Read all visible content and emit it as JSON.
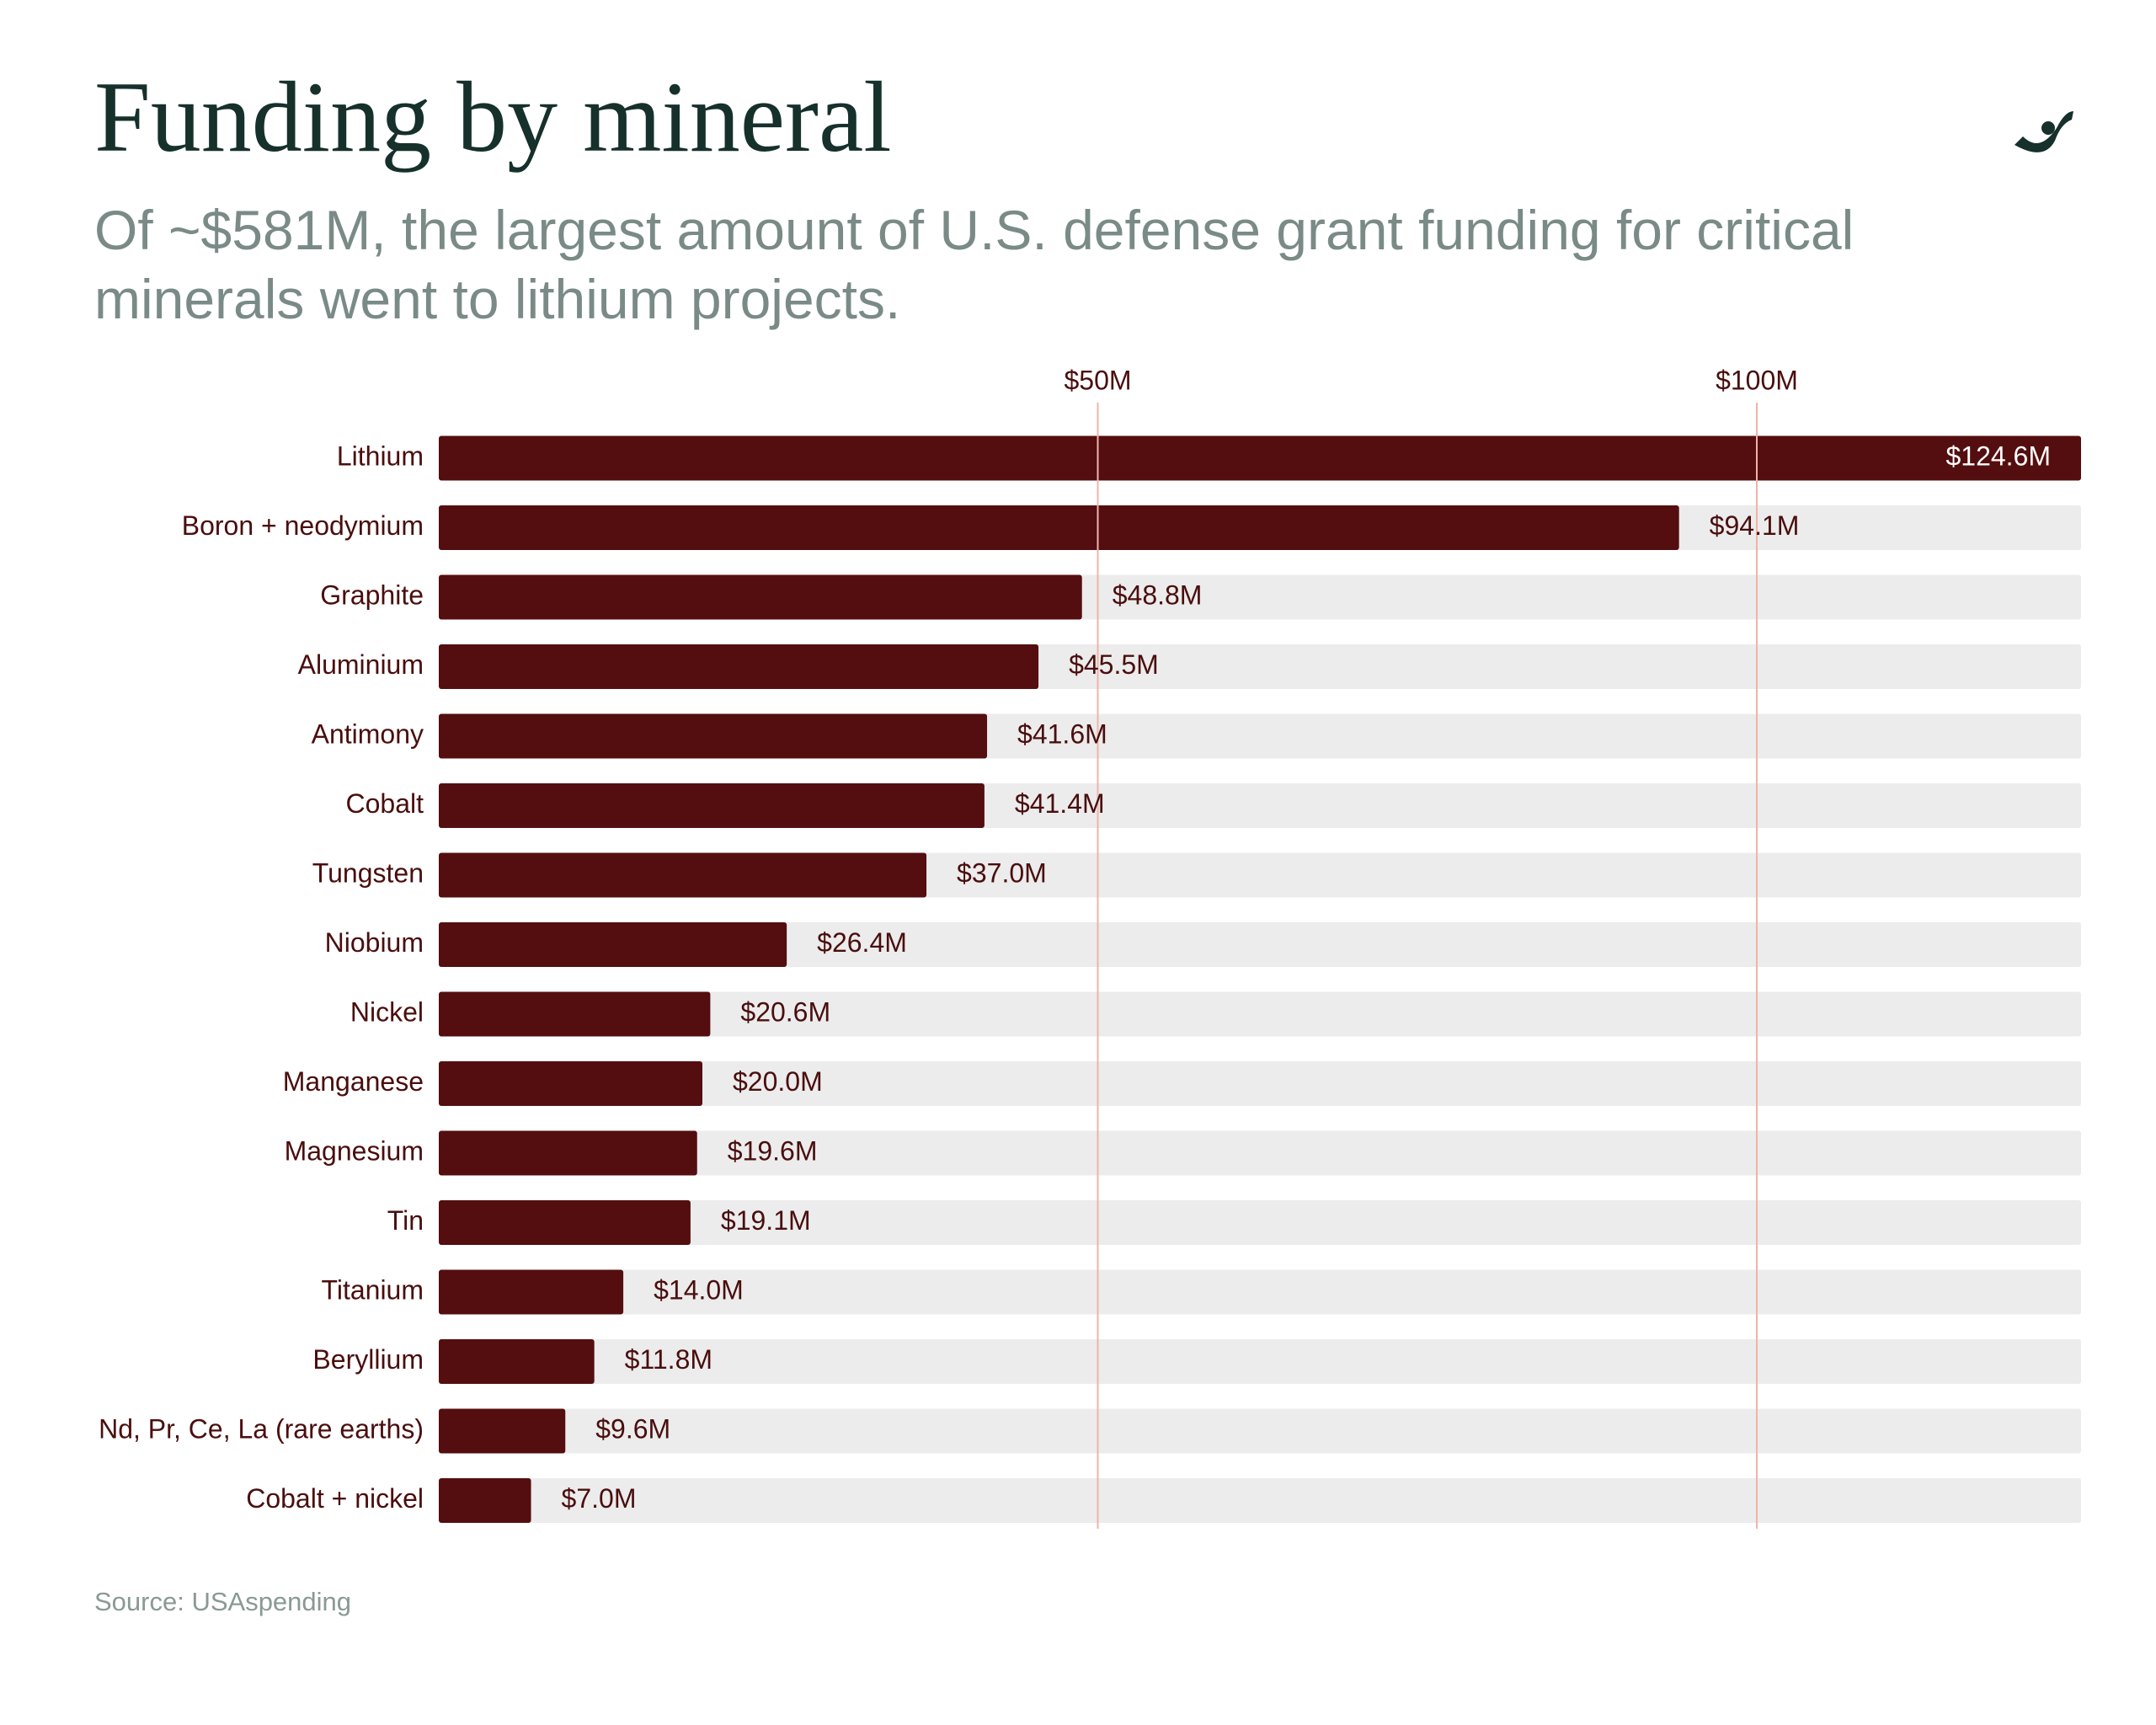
{
  "chart_data": {
    "type": "bar",
    "orientation": "horizontal",
    "title": "Funding by mineral",
    "subtitle": "Of ~$581M, the largest amount of U.S. defense grant funding for critical minerals went to lithium projects.",
    "source": "Source: USAspending",
    "categories": [
      "Lithium",
      "Boron + neodymium",
      "Graphite",
      "Aluminium",
      "Antimony",
      "Cobalt",
      "Tungsten",
      "Niobium",
      "Nickel",
      "Manganese",
      "Magnesium",
      "Tin",
      "Titanium",
      "Beryllium",
      "Nd, Pr, Ce, La (rare earths)",
      "Cobalt + nickel"
    ],
    "values": [
      124.6,
      94.1,
      48.8,
      45.5,
      41.6,
      41.4,
      37.0,
      26.4,
      20.6,
      20.0,
      19.6,
      19.1,
      14.0,
      11.8,
      9.6,
      7.0
    ],
    "value_labels": [
      "$124.6M",
      "$94.1M",
      "$48.8M",
      "$45.5M",
      "$41.6M",
      "$41.4M",
      "$37.0M",
      "$26.4M",
      "$20.6M",
      "$20.0M",
      "$19.6M",
      "$19.1M",
      "$14.0M",
      "$11.8M",
      "$9.6M",
      "$7.0M"
    ],
    "color": "#540e0f",
    "xlim": [
      0,
      124.6
    ],
    "xticks": [
      {
        "value": 50,
        "label": "$50M"
      },
      {
        "value": 100,
        "label": "$100M"
      }
    ],
    "grid": true
  }
}
